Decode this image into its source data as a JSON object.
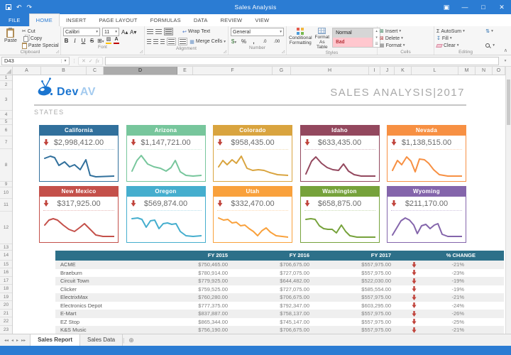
{
  "colors": {
    "titlebar": "#2b7cd3",
    "table_header": "#2d7089",
    "arrow_red": "#c0433b"
  },
  "titlebar": {
    "title": "Sales Analysis"
  },
  "ribbon": {
    "tabs": [
      {
        "label": "FILE",
        "active": false
      },
      {
        "label": "HOME",
        "active": true
      },
      {
        "label": "INSERT",
        "active": false
      },
      {
        "label": "PAGE LAYOUT",
        "active": false
      },
      {
        "label": "FORMULAS",
        "active": false
      },
      {
        "label": "DATA",
        "active": false
      },
      {
        "label": "REVIEW",
        "active": false
      },
      {
        "label": "VIEW",
        "active": false
      }
    ],
    "clipboard": {
      "label": "Clipboard",
      "paste": "Paste",
      "cut": "Cut",
      "copy": "Copy",
      "paste_special": "Paste Special"
    },
    "font": {
      "label": "Font",
      "font_name": "Calibri",
      "font_size": "11",
      "bold": "B",
      "italic": "I",
      "underline": "U",
      "strike": "S"
    },
    "alignment": {
      "label": "Alignment",
      "wrap_text": "Wrap Text",
      "merge_cells": "Merge Cells"
    },
    "number": {
      "label": "Number",
      "format": "General",
      "currency": "$",
      "percent": "%",
      "comma": ",",
      "inc_decimal": ".0",
      "dec_decimal": ".00"
    },
    "styles": {
      "label": "Styles",
      "conditional": "Conditional Formatting",
      "format_table": "Format As Table",
      "cell_styles": [
        "Normal",
        "Bad"
      ]
    },
    "cells": {
      "label": "Cells",
      "insert": "Insert",
      "delete": "Delete",
      "format": "Format"
    },
    "editing": {
      "label": "Editing",
      "autosum": "AutoSum",
      "fill": "Fill",
      "clear": "Clear"
    }
  },
  "formula_bar": {
    "name_box": "D43",
    "formula": ""
  },
  "grid": {
    "columns": [
      "A",
      "B",
      "C",
      "D",
      "E",
      "F",
      "G",
      "H",
      "I",
      "J",
      "K",
      "L",
      "M",
      "N",
      "O"
    ],
    "selected_column": "D",
    "rows": [
      "1",
      "2",
      "3",
      "4",
      "5",
      "6",
      "7",
      "8",
      "9",
      "10",
      "11",
      "12",
      "13",
      "14",
      "15",
      "16",
      "17",
      "18",
      "19",
      "20",
      "21",
      "22",
      "23"
    ]
  },
  "sheet": {
    "logo": {
      "brand": "Dev",
      "brand_suffix": "AV"
    },
    "section_label": "STATES",
    "title": "SALES ANALYSIS|2017",
    "cards": [
      {
        "name": "California",
        "value": "$2,998,412.00",
        "color": "#31709C",
        "spark": [
          [
            2,
            10
          ],
          [
            10,
            7
          ],
          [
            16,
            9
          ],
          [
            22,
            20
          ],
          [
            30,
            15
          ],
          [
            37,
            22
          ],
          [
            44,
            19
          ],
          [
            52,
            26
          ],
          [
            60,
            12
          ],
          [
            66,
            34
          ],
          [
            74,
            36
          ],
          [
            100,
            35
          ]
        ]
      },
      {
        "name": "Arizona",
        "value": "$1,147,721.00",
        "color": "#77C69C",
        "spark": [
          [
            2,
            28
          ],
          [
            9,
            13
          ],
          [
            15,
            6
          ],
          [
            24,
            18
          ],
          [
            33,
            22
          ],
          [
            42,
            24
          ],
          [
            50,
            28
          ],
          [
            57,
            23
          ],
          [
            63,
            13
          ],
          [
            70,
            29
          ],
          [
            78,
            34
          ],
          [
            88,
            35
          ],
          [
            100,
            34
          ]
        ]
      },
      {
        "name": "Colorado",
        "value": "$958,435.00",
        "color": "#D9A43F",
        "spark": [
          [
            2,
            22
          ],
          [
            8,
            13
          ],
          [
            14,
            19
          ],
          [
            21,
            12
          ],
          [
            27,
            17
          ],
          [
            34,
            7
          ],
          [
            42,
            24
          ],
          [
            50,
            27
          ],
          [
            58,
            26
          ],
          [
            66,
            27
          ],
          [
            74,
            30
          ],
          [
            85,
            33
          ],
          [
            100,
            34
          ]
        ]
      },
      {
        "name": "Idaho",
        "value": "$633,435.00",
        "color": "#93485E",
        "spark": [
          [
            2,
            32
          ],
          [
            10,
            14
          ],
          [
            16,
            8
          ],
          [
            24,
            17
          ],
          [
            32,
            23
          ],
          [
            40,
            26
          ],
          [
            48,
            27
          ],
          [
            55,
            18
          ],
          [
            62,
            28
          ],
          [
            70,
            33
          ],
          [
            80,
            35
          ],
          [
            100,
            35
          ]
        ]
      },
      {
        "name": "Nevada",
        "value": "$1,138,515.00",
        "color": "#F79043",
        "spark": [
          [
            2,
            27
          ],
          [
            9,
            13
          ],
          [
            15,
            19
          ],
          [
            22,
            8
          ],
          [
            28,
            14
          ],
          [
            34,
            29
          ],
          [
            40,
            11
          ],
          [
            47,
            12
          ],
          [
            53,
            17
          ],
          [
            60,
            26
          ],
          [
            68,
            33
          ],
          [
            80,
            35
          ],
          [
            100,
            35
          ]
        ]
      },
      {
        "name": "New Mexico",
        "value": "$317,925.00",
        "color": "#C4504A",
        "spark": [
          [
            2,
            18
          ],
          [
            8,
            11
          ],
          [
            14,
            9
          ],
          [
            20,
            11
          ],
          [
            28,
            18
          ],
          [
            36,
            24
          ],
          [
            44,
            27
          ],
          [
            52,
            21
          ],
          [
            58,
            16
          ],
          [
            66,
            24
          ],
          [
            74,
            32
          ],
          [
            84,
            34
          ],
          [
            100,
            34
          ]
        ]
      },
      {
        "name": "Oregon",
        "value": "$569,874.00",
        "color": "#45AECE",
        "spark": [
          [
            2,
            9
          ],
          [
            10,
            8
          ],
          [
            16,
            10
          ],
          [
            22,
            21
          ],
          [
            28,
            12
          ],
          [
            34,
            11
          ],
          [
            40,
            23
          ],
          [
            46,
            16
          ],
          [
            52,
            15
          ],
          [
            58,
            17
          ],
          [
            64,
            16
          ],
          [
            70,
            27
          ],
          [
            78,
            33
          ],
          [
            88,
            34
          ],
          [
            100,
            33
          ]
        ]
      },
      {
        "name": "Utah",
        "value": "$332,470.00",
        "color": "#F9A13C",
        "spark": [
          [
            2,
            8
          ],
          [
            9,
            11
          ],
          [
            15,
            10
          ],
          [
            21,
            15
          ],
          [
            27,
            14
          ],
          [
            33,
            19
          ],
          [
            39,
            18
          ],
          [
            45,
            23
          ],
          [
            51,
            27
          ],
          [
            57,
            33
          ],
          [
            63,
            26
          ],
          [
            69,
            22
          ],
          [
            75,
            28
          ],
          [
            83,
            33
          ],
          [
            100,
            35
          ]
        ]
      },
      {
        "name": "Washington",
        "value": "$658,875.00",
        "color": "#76A23B",
        "spark": [
          [
            2,
            10
          ],
          [
            9,
            9
          ],
          [
            15,
            10
          ],
          [
            21,
            19
          ],
          [
            27,
            23
          ],
          [
            33,
            24
          ],
          [
            39,
            24
          ],
          [
            45,
            29
          ],
          [
            52,
            18
          ],
          [
            58,
            27
          ],
          [
            64,
            33
          ],
          [
            74,
            35
          ],
          [
            100,
            35
          ]
        ]
      },
      {
        "name": "Wyoming",
        "value": "$211,170.00",
        "color": "#8465AB",
        "spark": [
          [
            2,
            32
          ],
          [
            8,
            22
          ],
          [
            14,
            12
          ],
          [
            20,
            8
          ],
          [
            26,
            11
          ],
          [
            32,
            18
          ],
          [
            37,
            30
          ],
          [
            43,
            19
          ],
          [
            49,
            17
          ],
          [
            55,
            23
          ],
          [
            61,
            18
          ],
          [
            66,
            16
          ],
          [
            72,
            31
          ],
          [
            80,
            34
          ],
          [
            100,
            34
          ]
        ]
      }
    ],
    "table": {
      "headers": [
        "",
        "FY 2015",
        "FY 2016",
        "FY 2017",
        "% CHANGE"
      ],
      "rows": [
        {
          "name": "ACME",
          "fy2015": "$750,465.00",
          "fy2016": "$706,675.00",
          "fy2017": "$557,975.00",
          "change": "-21%"
        },
        {
          "name": "Braeburn",
          "fy2015": "$780,914.00",
          "fy2016": "$727,075.00",
          "fy2017": "$557,975.00",
          "change": "-23%"
        },
        {
          "name": "Circuit Town",
          "fy2015": "$779,925.00",
          "fy2016": "$644,482.00",
          "fy2017": "$522,030.00",
          "change": "-19%"
        },
        {
          "name": "Clicker",
          "fy2015": "$759,525.00",
          "fy2016": "$727,075.00",
          "fy2017": "$585,554.00",
          "change": "-19%"
        },
        {
          "name": "ElectrixMax",
          "fy2015": "$760,280.00",
          "fy2016": "$706,675.00",
          "fy2017": "$557,975.00",
          "change": "-21%"
        },
        {
          "name": "Electronics Depot",
          "fy2015": "$777,375.00",
          "fy2016": "$792,347.00",
          "fy2017": "$603,295.00",
          "change": "-24%"
        },
        {
          "name": "E-Mart",
          "fy2015": "$837,887.00",
          "fy2016": "$758,137.00",
          "fy2017": "$557,975.00",
          "change": "-26%"
        },
        {
          "name": "EZ Stop",
          "fy2015": "$865,344.00",
          "fy2016": "$745,147.00",
          "fy2017": "$557,975.00",
          "change": "-25%"
        },
        {
          "name": "K&S Music",
          "fy2015": "$756,190.00",
          "fy2016": "$706,675.00",
          "fy2017": "$557,975.00",
          "change": "-21%"
        }
      ]
    }
  },
  "sheet_tabs": [
    {
      "label": "Sales Report",
      "active": true
    },
    {
      "label": "Sales Data",
      "active": false
    }
  ]
}
